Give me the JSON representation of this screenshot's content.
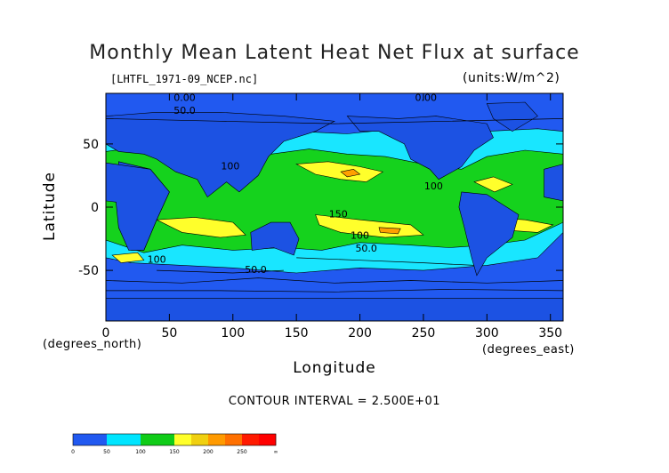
{
  "chart_data": {
    "type": "heatmap",
    "title": "Monthly Mean Latent Heat Net Flux at surface",
    "subtitle_left": "[LHTFL_1971-09_NCEP.nc]",
    "subtitle_right": "(units:W/m^2)",
    "xlabel": "Longitude",
    "ylabel": "Latitude",
    "x_unit_note": "(degrees_east)",
    "y_unit_note": "(degrees_north)",
    "xlim": [
      0,
      360
    ],
    "ylim": [
      -90,
      90
    ],
    "x_ticks": [
      0,
      50,
      100,
      150,
      200,
      250,
      300,
      350
    ],
    "y_ticks": [
      -50,
      0,
      50
    ],
    "contour_interval_text": "CONTOUR INTERVAL = 2.500E+01",
    "contour_labels": [
      "0.00",
      "0.00",
      "50.0",
      "100",
      "100",
      "150",
      "50.0",
      "100",
      "100",
      "50.0"
    ],
    "colorbar": {
      "boundaries": [
        0,
        50,
        100,
        150,
        200,
        250
      ],
      "labels": [
        "0",
        "50",
        "100",
        "150",
        "200",
        "250",
        "∞"
      ],
      "colors": [
        "#2159f0",
        "#2159f0",
        "#00e5ff",
        "#00e5ff",
        "#10cc18",
        "#10cc18",
        "#ffff2a",
        "#f0d010",
        "#ff9a00",
        "#ff7000",
        "#ff1a00",
        "#ff0000"
      ]
    },
    "field_colors": {
      "lt50": "#2159f0",
      "50_100": "#19e6ff",
      "100_150": "#15d21d",
      "150_200": "#ffff2b",
      "200_250": "#ffa000",
      "land_low": "#1c52e3"
    }
  }
}
